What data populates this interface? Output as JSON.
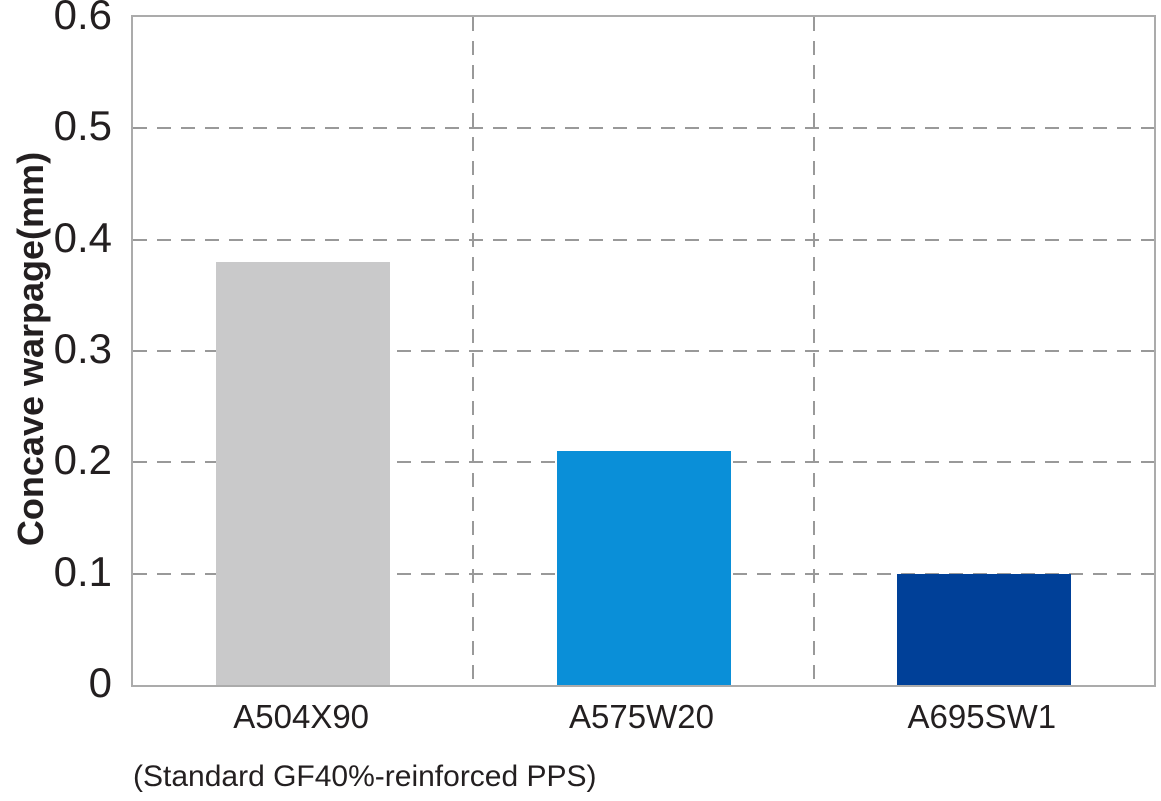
{
  "chart_data": {
    "type": "bar",
    "title": "",
    "ylabel": "Concave warpage(mm)",
    "xlabel": "",
    "categories": [
      "A504X90",
      "A575W20",
      "A695SW1"
    ],
    "values": [
      0.38,
      0.21,
      0.1
    ],
    "ylim": [
      0,
      0.6
    ],
    "yticks": [
      0,
      0.1,
      0.2,
      0.3,
      0.4,
      0.5,
      0.6
    ],
    "bar_colors": [
      "#c9c9ca",
      "#0a8fd8",
      "#004098"
    ],
    "grid": "dashed",
    "legend": "none",
    "note": "(Standard GF40%-reinforced PPS)",
    "text_color": "#231f20",
    "grid_color": "#999999",
    "border_color": "#ababab"
  }
}
